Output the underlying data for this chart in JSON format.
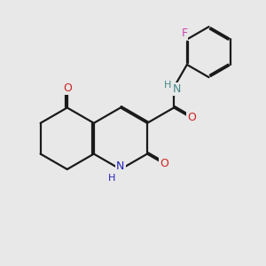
{
  "bg_color": "#e8e8e8",
  "bond_color": "#1a1a1a",
  "n_color": "#2222bb",
  "n_color2": "#448888",
  "o_color": "#cc2222",
  "f_color": "#cc44aa",
  "lw": 1.6,
  "dbo": 0.055,
  "xlim": [
    0,
    10
  ],
  "ylim": [
    0,
    10
  ]
}
